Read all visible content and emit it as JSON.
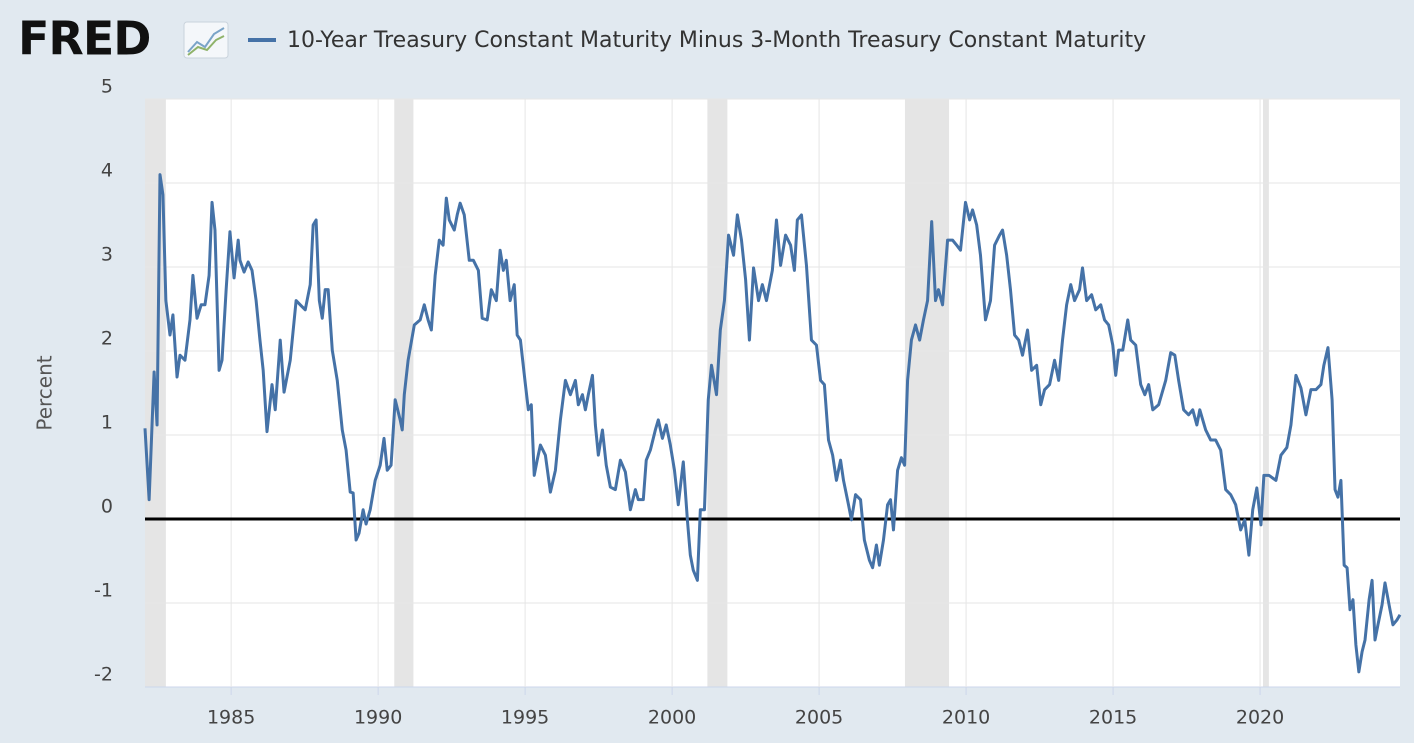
{
  "logo": "FRED",
  "chart_data": {
    "type": "line",
    "ylabel": "Percent",
    "xlim": [
      1982.07,
      2024.76
    ],
    "xticks": [
      1985,
      1990,
      1995,
      2000,
      2005,
      2010,
      2015,
      2020
    ],
    "ylim": [
      -2,
      5
    ],
    "yticks": [
      -2,
      -1,
      0,
      1,
      2,
      3,
      4,
      5
    ],
    "grid": true,
    "reference_line": 0,
    "recessions": [
      [
        1982.07,
        1982.78
      ],
      [
        1990.55,
        1991.2
      ],
      [
        2001.2,
        2001.88
      ],
      [
        2007.92,
        2009.42
      ],
      [
        2020.1,
        2020.3
      ]
    ],
    "x": [
      1982.07,
      1982.21,
      1982.38,
      1982.48,
      1982.58,
      1982.68,
      1982.78,
      1982.92,
      1983.02,
      1983.16,
      1983.26,
      1983.43,
      1983.6,
      1983.7,
      1983.84,
      1983.98,
      1984.11,
      1984.25,
      1984.35,
      1984.45,
      1984.59,
      1984.69,
      1984.83,
      1984.96,
      1985.1,
      1985.24,
      1985.3,
      1985.44,
      1985.58,
      1985.71,
      1985.85,
      1985.98,
      1986.09,
      1986.22,
      1986.39,
      1986.5,
      1986.67,
      1986.8,
      1987.01,
      1987.21,
      1987.35,
      1987.52,
      1987.69,
      1987.79,
      1987.89,
      1988.0,
      1988.1,
      1988.2,
      1988.3,
      1988.44,
      1988.61,
      1988.78,
      1988.91,
      1989.05,
      1989.15,
      1989.25,
      1989.35,
      1989.49,
      1989.59,
      1989.73,
      1989.9,
      1990.07,
      1990.2,
      1990.31,
      1990.44,
      1990.58,
      1990.75,
      1990.82,
      1990.89,
      1991.02,
      1991.23,
      1991.43,
      1991.57,
      1991.7,
      1991.81,
      1991.94,
      1992.08,
      1992.21,
      1992.32,
      1992.42,
      1992.59,
      1992.69,
      1992.79,
      1992.93,
      1993.1,
      1993.24,
      1993.41,
      1993.54,
      1993.71,
      1993.85,
      1994.02,
      1994.15,
      1994.26,
      1994.36,
      1994.49,
      1994.63,
      1994.73,
      1994.84,
      1995.01,
      1995.11,
      1995.21,
      1995.31,
      1995.41,
      1995.52,
      1995.69,
      1995.86,
      1996.03,
      1996.2,
      1996.37,
      1996.54,
      1996.71,
      1996.81,
      1996.95,
      1997.05,
      1997.15,
      1997.29,
      1997.39,
      1997.49,
      1997.63,
      1997.76,
      1997.9,
      1998.07,
      1998.24,
      1998.41,
      1998.58,
      1998.75,
      1998.85,
      1999.02,
      1999.12,
      1999.26,
      1999.43,
      1999.53,
      1999.67,
      1999.8,
      1999.94,
      2000.08,
      2000.21,
      2000.38,
      2000.52,
      2000.62,
      2000.72,
      2000.86,
      2000.96,
      2001.1,
      2001.23,
      2001.34,
      2001.51,
      2001.64,
      2001.78,
      2001.92,
      2002.09,
      2002.22,
      2002.36,
      2002.5,
      2002.63,
      2002.77,
      2002.94,
      2003.07,
      2003.21,
      2003.41,
      2003.55,
      2003.69,
      2003.86,
      2004.03,
      2004.16,
      2004.26,
      2004.4,
      2004.57,
      2004.74,
      2004.91,
      2005.05,
      2005.18,
      2005.32,
      2005.46,
      2005.59,
      2005.73,
      2005.83,
      2006.0,
      2006.1,
      2006.24,
      2006.41,
      2006.54,
      2006.71,
      2006.82,
      2006.95,
      2007.05,
      2007.19,
      2007.33,
      2007.43,
      2007.53,
      2007.67,
      2007.8,
      2007.91,
      2008.01,
      2008.14,
      2008.28,
      2008.42,
      2008.55,
      2008.69,
      2008.83,
      2008.96,
      2009.06,
      2009.2,
      2009.37,
      2009.54,
      2009.68,
      2009.81,
      2009.98,
      2010.12,
      2010.22,
      2010.36,
      2010.49,
      2010.66,
      2010.83,
      2010.97,
      2011.14,
      2011.24,
      2011.38,
      2011.51,
      2011.65,
      2011.79,
      2011.92,
      2012.09,
      2012.23,
      2012.4,
      2012.54,
      2012.67,
      2012.84,
      2013.01,
      2013.15,
      2013.28,
      2013.42,
      2013.56,
      2013.69,
      2013.86,
      2013.96,
      2014.1,
      2014.27,
      2014.41,
      2014.58,
      2014.71,
      2014.85,
      2014.99,
      2015.09,
      2015.19,
      2015.33,
      2015.5,
      2015.6,
      2015.77,
      2015.94,
      2016.08,
      2016.21,
      2016.35,
      2016.55,
      2016.79,
      2016.96,
      2017.1,
      2017.23,
      2017.4,
      2017.57,
      2017.71,
      2017.85,
      2017.95,
      2018.15,
      2018.32,
      2018.49,
      2018.66,
      2018.83,
      2019.0,
      2019.17,
      2019.34,
      2019.48,
      2019.62,
      2019.75,
      2019.89,
      2020.03,
      2020.13,
      2020.3,
      2020.54,
      2020.71,
      2020.91,
      2021.05,
      2021.22,
      2021.39,
      2021.56,
      2021.73,
      2021.9,
      2022.07,
      2022.17,
      2022.31,
      2022.45,
      2022.55,
      2022.65,
      2022.75,
      2022.86,
      2022.96,
      2023.06,
      2023.16,
      2023.26,
      2023.36,
      2023.47,
      2023.57,
      2023.71,
      2023.81,
      2023.91,
      2024.01,
      2024.15,
      2024.25,
      2024.42,
      2024.52,
      2024.66,
      2024.76
    ],
    "series": [
      {
        "name": "10-Year Treasury Constant Maturity Minus 3-Month Treasury Constant Maturity",
        "color": "#4572a7",
        "values": [
          1.08,
          0.23,
          1.75,
          1.12,
          4.1,
          3.86,
          2.6,
          2.19,
          2.43,
          1.69,
          1.95,
          1.89,
          2.37,
          2.9,
          2.39,
          2.55,
          2.55,
          2.9,
          3.77,
          3.44,
          1.77,
          1.89,
          2.73,
          3.42,
          2.87,
          3.32,
          3.08,
          2.94,
          3.06,
          2.96,
          2.6,
          2.13,
          1.77,
          1.04,
          1.6,
          1.3,
          2.13,
          1.51,
          1.89,
          2.6,
          2.55,
          2.49,
          2.79,
          3.5,
          3.56,
          2.6,
          2.39,
          2.73,
          2.73,
          2.01,
          1.65,
          1.06,
          0.82,
          0.32,
          0.31,
          -0.25,
          -0.17,
          0.11,
          -0.06,
          0.11,
          0.46,
          0.64,
          0.96,
          0.58,
          0.64,
          1.42,
          1.18,
          1.06,
          1.48,
          1.89,
          2.31,
          2.37,
          2.55,
          2.37,
          2.25,
          2.9,
          3.32,
          3.26,
          3.82,
          3.56,
          3.44,
          3.62,
          3.76,
          3.62,
          3.08,
          3.08,
          2.96,
          2.39,
          2.37,
          2.73,
          2.6,
          3.2,
          2.96,
          3.08,
          2.6,
          2.79,
          2.19,
          2.13,
          1.6,
          1.3,
          1.36,
          0.52,
          0.7,
          0.88,
          0.76,
          0.32,
          0.58,
          1.18,
          1.65,
          1.48,
          1.65,
          1.36,
          1.48,
          1.3,
          1.48,
          1.71,
          1.12,
          0.76,
          1.06,
          0.64,
          0.38,
          0.35,
          0.7,
          0.56,
          0.11,
          0.35,
          0.23,
          0.23,
          0.7,
          0.82,
          1.06,
          1.18,
          0.96,
          1.12,
          0.88,
          0.58,
          0.17,
          0.68,
          -0.01,
          -0.43,
          -0.61,
          -0.73,
          0.11,
          0.11,
          1.42,
          1.83,
          1.48,
          2.25,
          2.6,
          3.38,
          3.14,
          3.62,
          3.32,
          2.85,
          2.13,
          2.99,
          2.6,
          2.79,
          2.6,
          2.96,
          3.56,
          3.02,
          3.38,
          3.26,
          2.96,
          3.56,
          3.62,
          3.02,
          2.13,
          2.07,
          1.65,
          1.6,
          0.94,
          0.76,
          0.46,
          0.7,
          0.46,
          0.17,
          -0.01,
          0.29,
          0.23,
          -0.25,
          -0.49,
          -0.58,
          -0.31,
          -0.55,
          -0.25,
          0.17,
          0.23,
          -0.13,
          0.58,
          0.73,
          0.64,
          1.65,
          2.13,
          2.31,
          2.13,
          2.37,
          2.6,
          3.54,
          2.6,
          2.73,
          2.55,
          3.32,
          3.32,
          3.26,
          3.2,
          3.77,
          3.56,
          3.68,
          3.5,
          3.14,
          2.37,
          2.6,
          3.26,
          3.38,
          3.44,
          3.14,
          2.73,
          2.19,
          2.13,
          1.95,
          2.25,
          1.77,
          1.83,
          1.36,
          1.54,
          1.6,
          1.89,
          1.65,
          2.13,
          2.55,
          2.79,
          2.6,
          2.73,
          2.99,
          2.6,
          2.67,
          2.49,
          2.55,
          2.37,
          2.31,
          2.07,
          1.71,
          2.01,
          2.01,
          2.37,
          2.13,
          2.07,
          1.6,
          1.48,
          1.6,
          1.3,
          1.36,
          1.65,
          1.98,
          1.95,
          1.65,
          1.3,
          1.24,
          1.3,
          1.12,
          1.3,
          1.06,
          0.94,
          0.94,
          0.82,
          0.35,
          0.29,
          0.17,
          -0.13,
          -0.01,
          -0.43,
          0.11,
          0.37,
          -0.07,
          0.52,
          0.52,
          0.46,
          0.76,
          0.85,
          1.12,
          1.71,
          1.56,
          1.24,
          1.54,
          1.54,
          1.6,
          1.83,
          2.04,
          1.42,
          0.35,
          0.26,
          0.46,
          -0.55,
          -0.58,
          -1.08,
          -0.96,
          -1.5,
          -1.82,
          -1.58,
          -1.44,
          -0.96,
          -0.73,
          -1.44,
          -1.26,
          -1.02,
          -0.76,
          -1.08,
          -1.26,
          -1.2,
          -1.14
        ]
      }
    ]
  }
}
